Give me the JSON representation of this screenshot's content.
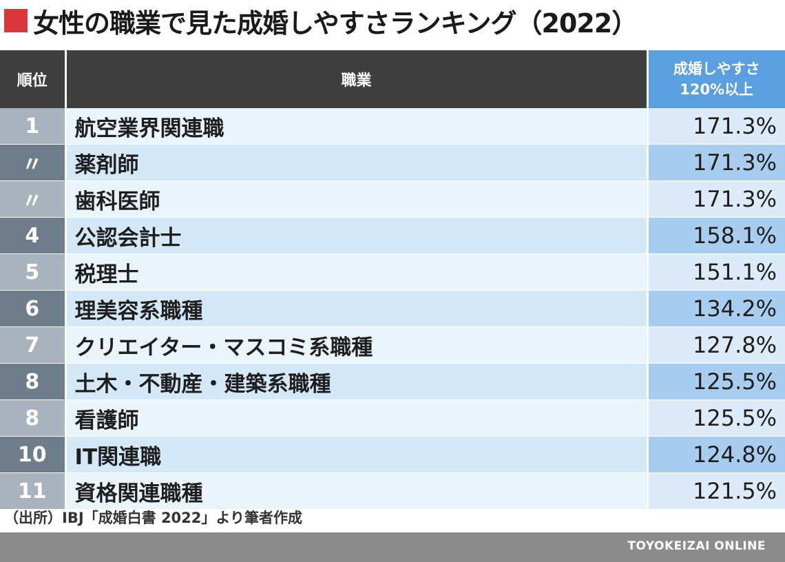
{
  "title": "女性の職業で見た成婚しやすさランキング（2022）",
  "header": {
    "rank": "順位",
    "job": "職業",
    "rate_line1": "成婚しやすさ",
    "rate_line2": "120%以上"
  },
  "rows": [
    {
      "rank": "1",
      "job": "航空業界関連職",
      "rate": "171.3%"
    },
    {
      "rank": "〃",
      "job": "薬剤師",
      "rate": "171.3%"
    },
    {
      "rank": "〃",
      "job": "歯科医師",
      "rate": "171.3%"
    },
    {
      "rank": "4",
      "job": "公認会計士",
      "rate": "158.1%"
    },
    {
      "rank": "5",
      "job": "税理士",
      "rate": "151.1%"
    },
    {
      "rank": "6",
      "job": "理美容系職種",
      "rate": "134.2%"
    },
    {
      "rank": "7",
      "job": "クリエイター・マスコミ系職種",
      "rate": "127.8%"
    },
    {
      "rank": "8",
      "job": "土木・不動産・建築系職種",
      "rate": "125.5%"
    },
    {
      "rank": "8",
      "job": "看護師",
      "rate": "125.5%"
    },
    {
      "rank": "10",
      "job": "IT関連職",
      "rate": "124.8%"
    },
    {
      "rank": "11",
      "job": "資格関連職種",
      "rate": "121.5%"
    }
  ],
  "source": "（出所）IBJ「成婚白書 2022」より筆者作成",
  "brand": "TOYOKEIZAI ONLINE",
  "colors": {
    "accent": "#d9363e",
    "header_dark": "#3f3f3f",
    "header_blue": "#5a9fe0"
  }
}
